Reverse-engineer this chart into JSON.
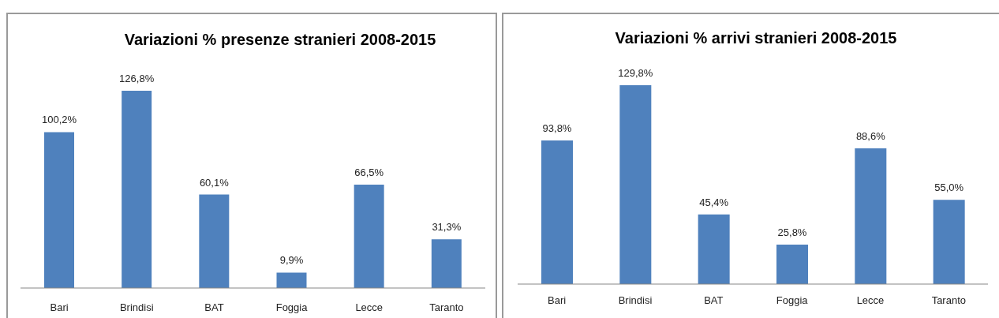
{
  "chart_data": [
    {
      "type": "bar",
      "title": "Variazioni % presenze stranieri 2008-2015",
      "categories": [
        "Bari",
        "Brindisi",
        "BAT",
        "Foggia",
        "Lecce",
        "Taranto"
      ],
      "values": [
        100.2,
        126.8,
        60.1,
        9.9,
        66.5,
        31.3
      ],
      "value_labels": [
        "100,2%",
        "126,8%",
        "60,1%",
        "9,9%",
        "66,5%",
        "31,3%"
      ],
      "color": "#4f81bd",
      "tick_labels": "x"
    },
    {
      "type": "bar",
      "title": "Variazioni % arrivi stranieri 2008-2015",
      "categories": [
        "Bari",
        "Brindisi",
        "BAT",
        "Foggia",
        "Lecce",
        "Taranto"
      ],
      "values": [
        93.8,
        129.8,
        45.4,
        25.8,
        88.6,
        55.0
      ],
      "value_labels": [
        "93,8%",
        "129,8%",
        "45,4%",
        "25,8%",
        "88,6%",
        "55,0%"
      ],
      "color": "#4f81bd",
      "tick_labels": "x"
    }
  ]
}
